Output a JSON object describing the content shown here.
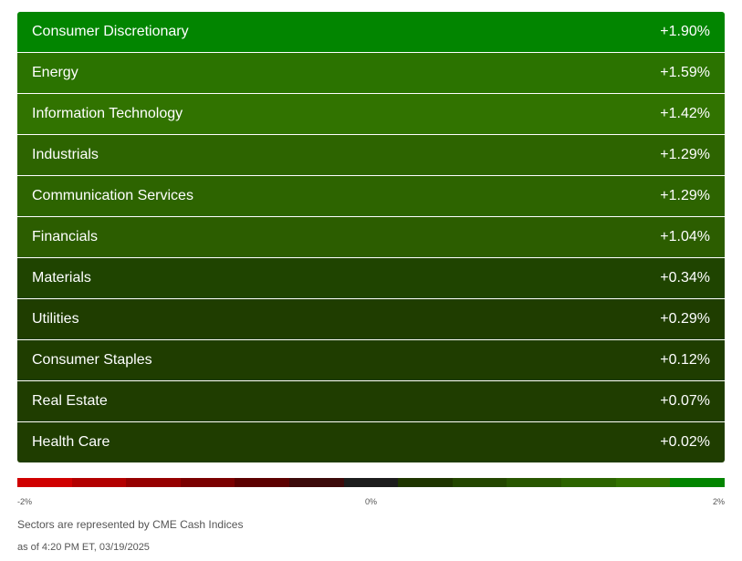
{
  "sectors": [
    {
      "name": "Consumer Discretionary",
      "change": "+1.90%",
      "color": "#028500"
    },
    {
      "name": "Energy",
      "change": "+1.59%",
      "color": "#2b7300"
    },
    {
      "name": "Information Technology",
      "change": "+1.42%",
      "color": "#317300"
    },
    {
      "name": "Industrials",
      "change": "+1.29%",
      "color": "#2d6400"
    },
    {
      "name": "Communication Services",
      "change": "+1.29%",
      "color": "#2d6400"
    },
    {
      "name": "Financials",
      "change": "+1.04%",
      "color": "#2c5d00"
    },
    {
      "name": "Materials",
      "change": "+0.34%",
      "color": "#1f4400"
    },
    {
      "name": "Utilities",
      "change": "+0.29%",
      "color": "#1f3d00"
    },
    {
      "name": "Consumer Staples",
      "change": "+0.12%",
      "color": "#1f3d00"
    },
    {
      "name": "Real Estate",
      "change": "+0.07%",
      "color": "#1f3d00"
    },
    {
      "name": "Health Care",
      "change": "+0.02%",
      "color": "#1f3d00"
    }
  ],
  "scale": {
    "min_label": "-2%",
    "mid_label": "0%",
    "max_label": "2%",
    "colors": [
      "#d00000",
      "#b30000",
      "#960000",
      "#7a0000",
      "#5c0000",
      "#3c0a0a",
      "#1c1c1c",
      "#1e3500",
      "#234600",
      "#285600",
      "#2c6400",
      "#327200",
      "#028500"
    ]
  },
  "footer": {
    "note": "Sectors are represented by CME Cash Indices",
    "timestamp": "as of 4:20 PM ET, 03/19/2025"
  }
}
